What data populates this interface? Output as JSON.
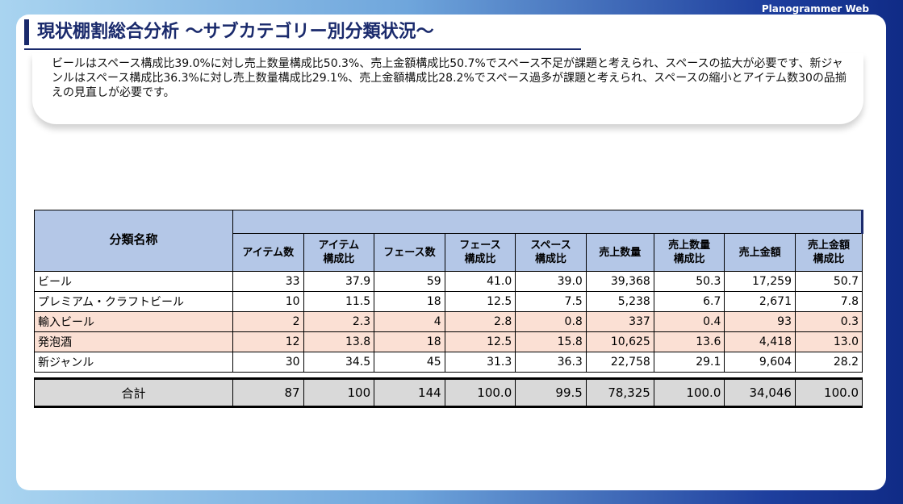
{
  "header": {
    "title": "現状棚割総合分析 ～サブカテゴリー別分類状況～",
    "brand": "Planogrammer Web"
  },
  "summary": "ビールはスペース構成比39.0%に対し売上数量構成比50.3%、売上金額構成比50.7%でスペース不足が課題と考えられ、スペースの拡大が必要です、新ジャンルはスペース構成比36.3%に対し売上数量構成比29.1%、売上金額構成比28.2%でスペース過多が課題と考えられ、スペースの縮小とアイテム数30の品揃えの見直しが必要です。",
  "table": {
    "headers": [
      "分類名称",
      "アイテム数",
      "アイテム\n構成比",
      "フェース数",
      "フェース\n構成比",
      "スペース\n構成比",
      "売上数量",
      "売上数量\n構成比",
      "売上金額",
      "売上金額\n構成比"
    ],
    "rows": [
      [
        "ビール",
        "33",
        "37.9",
        "59",
        "41.0",
        "39.0",
        "39,368",
        "50.3",
        "17,259",
        "50.7"
      ],
      [
        "プレミアム・クラフトビール",
        "10",
        "11.5",
        "18",
        "12.5",
        "7.5",
        "5,238",
        "6.7",
        "2,671",
        "7.8"
      ],
      [
        "輸入ビール",
        "2",
        "2.3",
        "4",
        "2.8",
        "0.8",
        "337",
        "0.4",
        "93",
        "0.3"
      ],
      [
        "発泡酒",
        "12",
        "13.8",
        "18",
        "12.5",
        "15.8",
        "10,625",
        "13.6",
        "4,418",
        "13.0"
      ],
      [
        "新ジャンル",
        "30",
        "34.5",
        "45",
        "31.3",
        "36.3",
        "22,758",
        "29.1",
        "9,604",
        "28.2"
      ]
    ],
    "total": [
      "合計",
      "87",
      "100",
      "144",
      "100.0",
      "99.5",
      "78,325",
      "100.0",
      "34,046",
      "100.0"
    ]
  }
}
